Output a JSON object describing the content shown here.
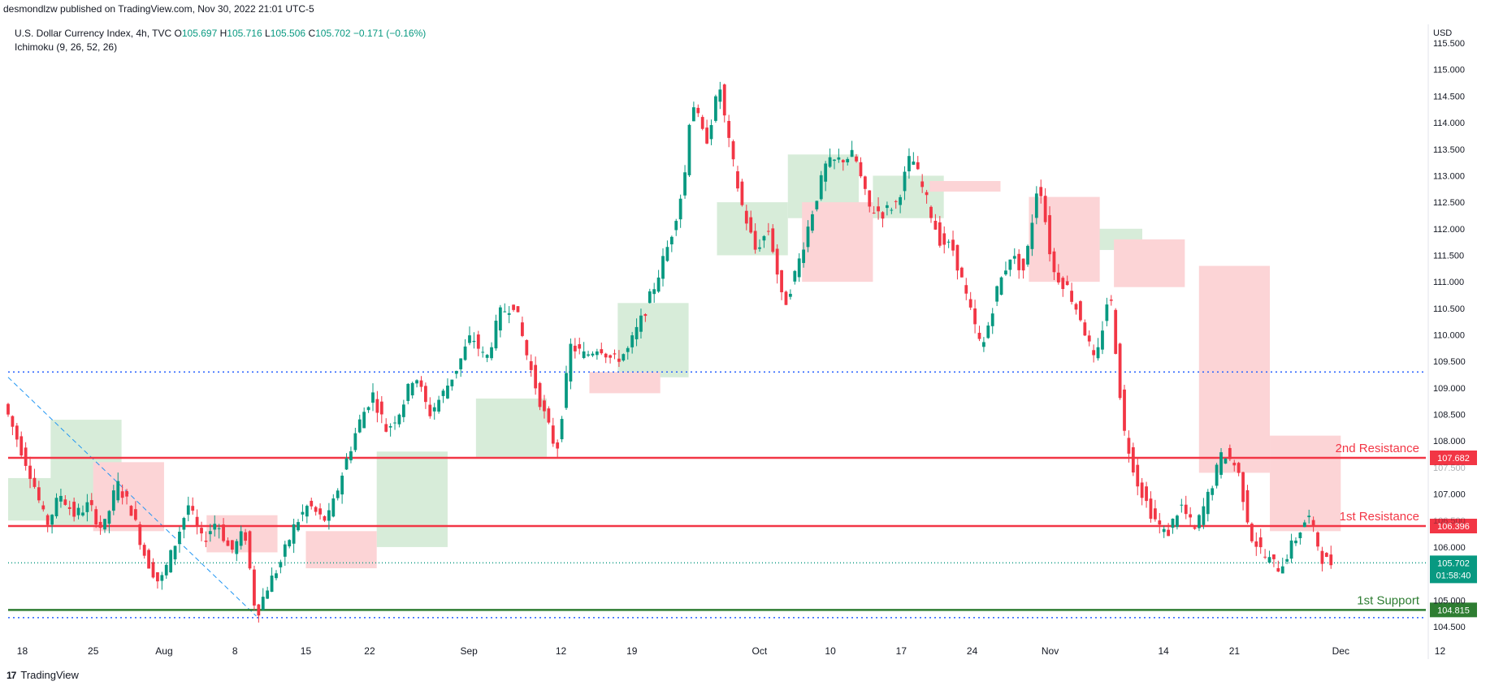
{
  "header": {
    "published": "desmondlzw published on TradingView.com, Nov 30, 2022 21:01 UTC-5"
  },
  "legend": {
    "symbol": "U.S. Dollar Currency Index, 4h, TVC",
    "open_label": "O",
    "open": "105.697",
    "high_label": "H",
    "high": "105.716",
    "low_label": "L",
    "low": "105.506",
    "close_label": "C",
    "close": "105.702",
    "change": "−0.171 (−0.16%)",
    "indicator": "Ichimoku (9, 26, 52, 26)"
  },
  "price_axis": {
    "currency": "USD",
    "labels": [
      "115.500",
      "115.000",
      "114.500",
      "114.000",
      "113.500",
      "113.000",
      "112.500",
      "112.000",
      "111.500",
      "111.000",
      "110.500",
      "110.000",
      "109.500",
      "109.000",
      "108.500",
      "108.000",
      "107.500",
      "107.000",
      "106.500",
      "106.000",
      "105.500",
      "105.000",
      "104.500"
    ]
  },
  "time_axis": {
    "labels": [
      "18",
      "25",
      "Aug",
      "8",
      "15",
      "22",
      "Sep",
      "12",
      "19",
      "Oct",
      "10",
      "17",
      "24",
      "Nov",
      "14",
      "21",
      "Dec",
      "12"
    ]
  },
  "levels": [
    {
      "name": "2nd Resistance",
      "price": "107.682",
      "color": "#f23645"
    },
    {
      "name": "1st Resistance",
      "price": "106.396",
      "color": "#f23645"
    },
    {
      "name": "1st Support",
      "price": "104.815",
      "color": "#2e7d32"
    }
  ],
  "current_price": {
    "price": "105.702",
    "countdown": "01:58:40",
    "color": "#089981"
  },
  "footer": {
    "logo": "TradingView",
    "mark": "17"
  },
  "colors": {
    "up": "#089981",
    "down": "#f23645",
    "cloud_bull": "#d7ecd9",
    "cloud_bear": "#fcd4d6",
    "dotted_level": "#2962ff",
    "trendline": "#2196f3"
  },
  "chart_data": {
    "type": "candlestick",
    "title": "U.S. Dollar Currency Index, 4h, TVC",
    "ylim": [
      104.3,
      115.7
    ],
    "xlim": [
      0,
      100
    ],
    "x_tick_labels": [
      "18",
      "25",
      "Aug",
      "8",
      "15",
      "22",
      "Sep",
      "12",
      "19",
      "Oct",
      "10",
      "17",
      "24",
      "Nov",
      "14",
      "21",
      "Dec",
      "12"
    ],
    "x_tick_positions": [
      1,
      6,
      11,
      16,
      21,
      25.5,
      32.5,
      39,
      44,
      53,
      58,
      63,
      68,
      73.5,
      81.5,
      86.5,
      94,
      101
    ],
    "price_path": [
      [
        0,
        108.7
      ],
      [
        1,
        108.0
      ],
      [
        2,
        107.3
      ],
      [
        3,
        106.4
      ],
      [
        4,
        107.0
      ],
      [
        5,
        106.6
      ],
      [
        6,
        106.8
      ],
      [
        7,
        106.3
      ],
      [
        8,
        107.2
      ],
      [
        9,
        106.7
      ],
      [
        10,
        105.8
      ],
      [
        11,
        105.3
      ],
      [
        12,
        106.0
      ],
      [
        13,
        106.8
      ],
      [
        14,
        106.1
      ],
      [
        15,
        106.5
      ],
      [
        16,
        105.9
      ],
      [
        17,
        106.3
      ],
      [
        17.8,
        104.7
      ],
      [
        18.5,
        105.2
      ],
      [
        19.5,
        105.7
      ],
      [
        20.5,
        106.4
      ],
      [
        21.5,
        106.8
      ],
      [
        22.5,
        106.5
      ],
      [
        23,
        106.6
      ],
      [
        24,
        107.5
      ],
      [
        25,
        108.3
      ],
      [
        26,
        108.9
      ],
      [
        27,
        108.2
      ],
      [
        28,
        108.6
      ],
      [
        29,
        109.3
      ],
      [
        30,
        108.5
      ],
      [
        31,
        108.9
      ],
      [
        32,
        109.4
      ],
      [
        33,
        110.0
      ],
      [
        34,
        109.5
      ],
      [
        35,
        110.4
      ],
      [
        36,
        110.6
      ],
      [
        37,
        109.5
      ],
      [
        38,
        108.6
      ],
      [
        39,
        107.8
      ],
      [
        40,
        109.8
      ],
      [
        41,
        109.6
      ],
      [
        42,
        109.8
      ],
      [
        43,
        109.5
      ],
      [
        44,
        109.7
      ],
      [
        45,
        110.3
      ],
      [
        46,
        111.0
      ],
      [
        47,
        111.8
      ],
      [
        48,
        112.9
      ],
      [
        48.5,
        114.5
      ],
      [
        49.5,
        113.6
      ],
      [
        50.5,
        114.7
      ],
      [
        51,
        113.8
      ],
      [
        52,
        112.5
      ],
      [
        53,
        111.6
      ],
      [
        54,
        112.0
      ],
      [
        55,
        110.5
      ],
      [
        56,
        111.3
      ],
      [
        57,
        112.3
      ],
      [
        58,
        113.2
      ],
      [
        59,
        113.3
      ],
      [
        60,
        113.4
      ],
      [
        61,
        112.4
      ],
      [
        62,
        112.3
      ],
      [
        63,
        112.5
      ],
      [
        64,
        113.4
      ],
      [
        65,
        112.6
      ],
      [
        66,
        111.8
      ],
      [
        67,
        111.6
      ],
      [
        68,
        110.6
      ],
      [
        69,
        109.7
      ],
      [
        70,
        110.8
      ],
      [
        71,
        111.5
      ],
      [
        72,
        111.2
      ],
      [
        73,
        113.0
      ],
      [
        74,
        111.2
      ],
      [
        75,
        110.9
      ],
      [
        76,
        110.3
      ],
      [
        77,
        109.4
      ],
      [
        78,
        110.9
      ],
      [
        79,
        108.2
      ],
      [
        80,
        107.2
      ],
      [
        81,
        106.6
      ],
      [
        82,
        106.2
      ],
      [
        83,
        106.8
      ],
      [
        84,
        106.3
      ],
      [
        85,
        107.0
      ],
      [
        86,
        107.8
      ],
      [
        87,
        107.5
      ],
      [
        88,
        106.2
      ],
      [
        89,
        105.8
      ],
      [
        90,
        105.6
      ],
      [
        91,
        106.1
      ],
      [
        92,
        106.6
      ],
      [
        93,
        105.8
      ],
      [
        93.5,
        105.7
      ]
    ],
    "cloud": {
      "bull_segments": [
        [
          0,
          106.5,
          107.3
        ],
        [
          3,
          106.4,
          108.4
        ],
        [
          26,
          106.0,
          107.8
        ],
        [
          33,
          107.7,
          108.8
        ],
        [
          43,
          109.2,
          110.6
        ],
        [
          50,
          111.5,
          112.5
        ],
        [
          55,
          112.2,
          113.4
        ],
        [
          61,
          112.2,
          113.0
        ],
        [
          75,
          111.6,
          112.0
        ]
      ],
      "bear_segments": [
        [
          6,
          106.3,
          107.6
        ],
        [
          14,
          105.9,
          106.6
        ],
        [
          21,
          105.6,
          106.3
        ],
        [
          41,
          108.9,
          109.3
        ],
        [
          56,
          111.0,
          112.5
        ],
        [
          65,
          112.7,
          112.9
        ],
        [
          72,
          111.0,
          112.6
        ],
        [
          78,
          110.9,
          111.8
        ],
        [
          84,
          107.4,
          111.3
        ],
        [
          89,
          106.3,
          108.1
        ]
      ]
    },
    "horizontal_levels": [
      {
        "label": "2nd Resistance",
        "value": 107.682
      },
      {
        "label": "1st Resistance",
        "value": 106.396
      },
      {
        "label": "1st Support",
        "value": 104.815
      },
      {
        "label": "",
        "value": 109.3
      },
      {
        "label": "",
        "value": 104.67
      },
      {
        "label": "",
        "value": 105.702
      }
    ],
    "trendline": [
      [
        0,
        109.2
      ],
      [
        17.5,
        104.7
      ]
    ]
  }
}
